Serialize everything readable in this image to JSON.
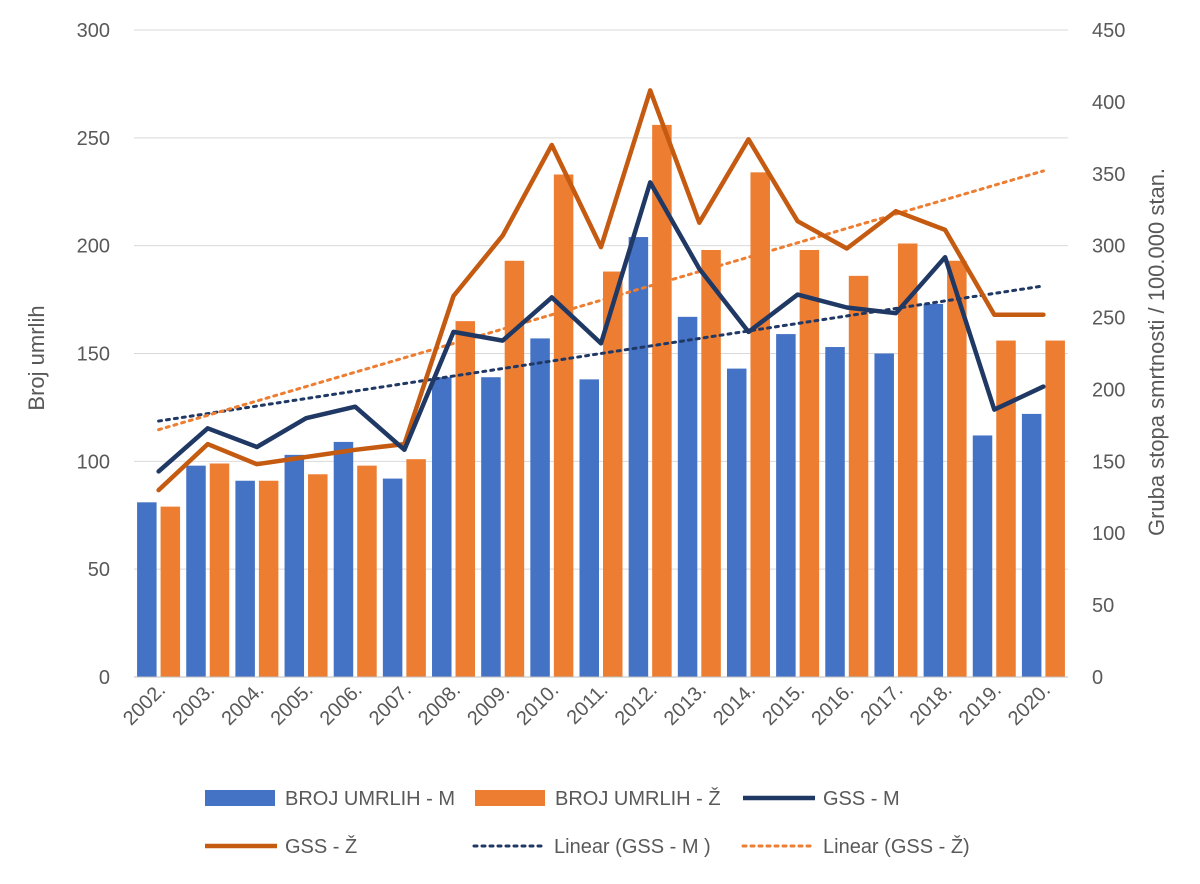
{
  "chart_data": {
    "type": "bar",
    "categories": [
      "2002.",
      "2003.",
      "2004.",
      "2005.",
      "2006.",
      "2007.",
      "2008.",
      "2009.",
      "2010.",
      "2011.",
      "2012.",
      "2013.",
      "2014.",
      "2015.",
      "2016.",
      "2017.",
      "2018.",
      "2019.",
      "2020."
    ],
    "bar_series": [
      {
        "name": "BROJ UMRLIH - M",
        "color": "#4472C4",
        "axis": "left",
        "values": [
          81,
          98,
          91,
          103,
          109,
          92,
          139,
          139,
          157,
          138,
          204,
          167,
          143,
          159,
          153,
          150,
          173,
          112,
          122
        ]
      },
      {
        "name": "BROJ UMRLIH - Ž",
        "color": "#ED7D31",
        "axis": "left",
        "values": [
          79,
          99,
          91,
          94,
          98,
          101,
          165,
          193,
          233,
          188,
          256,
          198,
          234,
          198,
          186,
          201,
          193,
          156,
          156
        ]
      }
    ],
    "line_series": [
      {
        "name": "GSS - M",
        "color": "#203864",
        "axis": "right",
        "style": "solid",
        "values": [
          143,
          173,
          160,
          180,
          188,
          158,
          240,
          234,
          264,
          232,
          344,
          284,
          240,
          266,
          257,
          253,
          292,
          186,
          202
        ]
      },
      {
        "name": "GSS - Ž",
        "color": "#C55A11",
        "axis": "right",
        "style": "solid",
        "values": [
          130,
          162,
          148,
          153,
          158,
          162,
          265,
          307,
          370,
          299,
          408,
          316,
          374,
          317,
          298,
          324,
          311,
          252,
          252
        ]
      }
    ],
    "trend_series": [
      {
        "name": "Linear (GSS - M )",
        "color": "#203864",
        "axis": "right",
        "style": "dotted",
        "start": 178,
        "end": 272
      },
      {
        "name": "Linear (GSS - Ž)",
        "color": "#ED7D31",
        "axis": "right",
        "style": "dotted",
        "start": 172,
        "end": 352
      }
    ],
    "left_axis": {
      "label": "Broj umrlih",
      "min": 0,
      "max": 300,
      "ticks": [
        "0",
        "50",
        "100",
        "150",
        "200",
        "250",
        "300"
      ]
    },
    "right_axis": {
      "label": "Gruba stopa smrtnosti / 100.000 stan.",
      "min": 0,
      "max": 450,
      "ticks": [
        "0",
        "50",
        "100",
        "150",
        "200",
        "250",
        "300",
        "350",
        "400",
        "450"
      ]
    },
    "grid": true,
    "legend_position": "bottom"
  }
}
